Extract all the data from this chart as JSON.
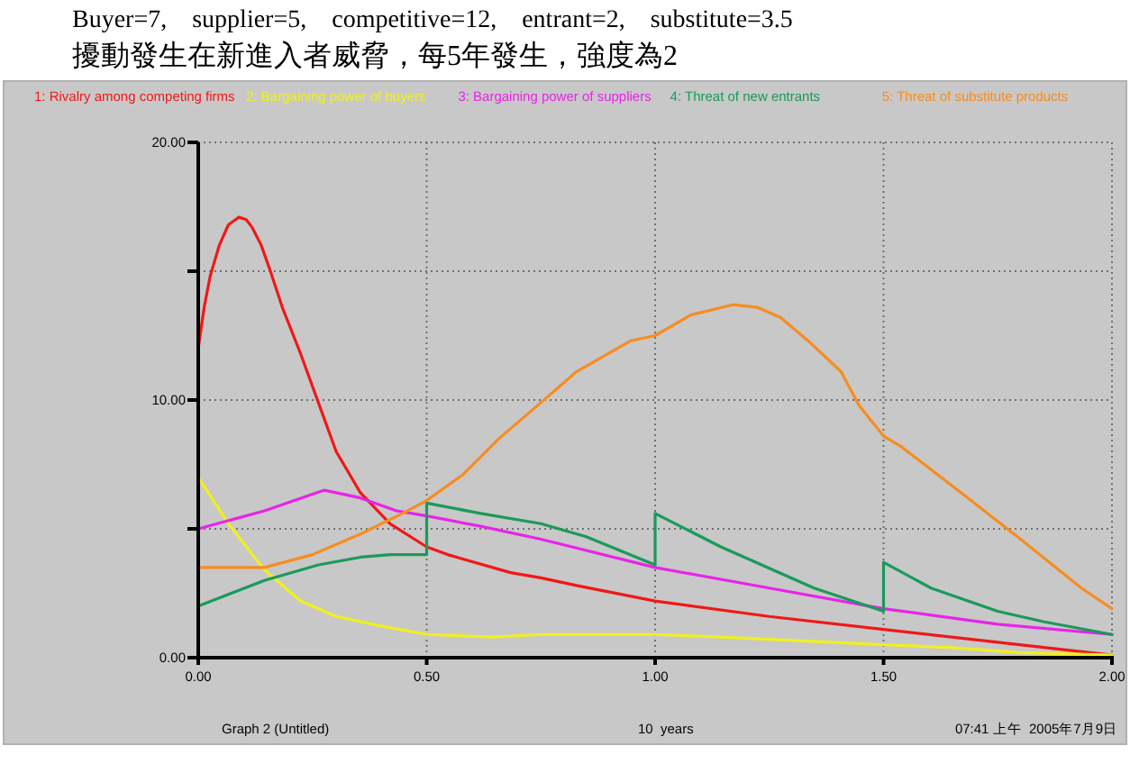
{
  "chart_data": {
    "type": "line",
    "title": "Buyer=7,    supplier=5,    competitive=12,    entrant=2,    substitute=3.5",
    "subtitle": "擾動發生在新進入者威脅，每5年發生，強度為2",
    "annotations": [
      "Graph 2 (Untitled)",
      "10  years",
      "07:41 上午  2005年7月9日"
    ],
    "xlim": [
      0,
      2
    ],
    "ylim": [
      0,
      20
    ],
    "xticks": [
      {
        "value": 0,
        "label": "0.00"
      },
      {
        "value": 0.5,
        "label": "0.50"
      },
      {
        "value": 1,
        "label": "1.00"
      },
      {
        "value": 1.5,
        "label": "1.50"
      },
      {
        "value": 2,
        "label": "2.00"
      }
    ],
    "yticks": [
      {
        "value": 0,
        "label": "0.00"
      },
      {
        "value": 5,
        "label": null
      },
      {
        "value": 10,
        "label": "10.00"
      },
      {
        "value": 15,
        "label": null
      },
      {
        "value": 20,
        "label": "20.00"
      }
    ],
    "grid": true,
    "legend": "top",
    "series": [
      {
        "name": "1: Rivalry among competing firms",
        "color": "#f01818",
        "x": [
          0,
          0.013,
          0.026,
          0.046,
          0.066,
          0.089,
          0.105,
          0.118,
          0.138,
          0.158,
          0.184,
          0.224,
          0.263,
          0.302,
          0.355,
          0.42,
          0.5,
          0.546,
          0.684,
          0.75,
          0.828,
          1.0,
          1.25,
          1.5,
          1.75,
          2.0
        ],
        "values": [
          12,
          13.6,
          14.8,
          16,
          16.8,
          17.1,
          17,
          16.7,
          16,
          15,
          13.6,
          11.8,
          9.9,
          8,
          6.4,
          5.2,
          4.3,
          4,
          3.3,
          3.1,
          2.8,
          2.2,
          1.6,
          1.1,
          0.6,
          0.1
        ]
      },
      {
        "name": "2: Bargaining power of buyers",
        "color": "#f0f020",
        "x": [
          0,
          0.066,
          0.145,
          0.224,
          0.302,
          0.408,
          0.5,
          0.644,
          0.75,
          0.828,
          1.0,
          1.144,
          1.5,
          1.64,
          1.8,
          2.0
        ],
        "values": [
          7,
          5.2,
          3.4,
          2.2,
          1.6,
          1.2,
          0.9,
          0.8,
          0.9,
          0.9,
          0.9,
          0.8,
          0.5,
          0.4,
          0.2,
          0.1
        ]
      },
      {
        "name": "3: Bargaining power of suppliers",
        "color": "#e824e8",
        "x": [
          0,
          0.145,
          0.243,
          0.276,
          0.355,
          0.434,
          0.5,
          0.618,
          0.75,
          1.0,
          1.25,
          1.5,
          1.75,
          2.0
        ],
        "values": [
          5,
          5.7,
          6.3,
          6.5,
          6.2,
          5.7,
          5.5,
          5.1,
          4.6,
          3.5,
          2.7,
          1.9,
          1.3,
          0.9
        ]
      },
      {
        "name": "4: Threat of new entrants",
        "color": "#1a9a5a",
        "x": [
          0,
          0.145,
          0.263,
          0.355,
          0.42,
          0.5,
          0.5,
          0.618,
          0.75,
          0.848,
          1.0,
          1.0,
          1.144,
          1.348,
          1.5,
          1.5,
          1.604,
          1.75,
          1.85,
          2.0
        ],
        "values": [
          2,
          3,
          3.6,
          3.9,
          4,
          4,
          6,
          5.6,
          5.2,
          4.7,
          3.6,
          5.6,
          4.3,
          2.7,
          1.8,
          3.7,
          2.7,
          1.8,
          1.4,
          0.9
        ]
      },
      {
        "name": "5: Threat of substitute products",
        "color": "#f88c20",
        "x": [
          0,
          0.145,
          0.25,
          0.355,
          0.447,
          0.5,
          0.579,
          0.658,
          0.75,
          0.828,
          0.947,
          1.0,
          1.078,
          1.17,
          1.223,
          1.275,
          1.341,
          1.407,
          1.446,
          1.5,
          1.538,
          1.67,
          1.8,
          1.933,
          2.0
        ],
        "values": [
          3.5,
          3.5,
          4,
          4.8,
          5.6,
          6.1,
          7.1,
          8.5,
          9.9,
          11.1,
          12.3,
          12.5,
          13.3,
          13.7,
          13.6,
          13.2,
          12.2,
          11.1,
          9.8,
          8.6,
          8.2,
          6.4,
          4.6,
          2.7,
          1.9
        ]
      }
    ]
  }
}
